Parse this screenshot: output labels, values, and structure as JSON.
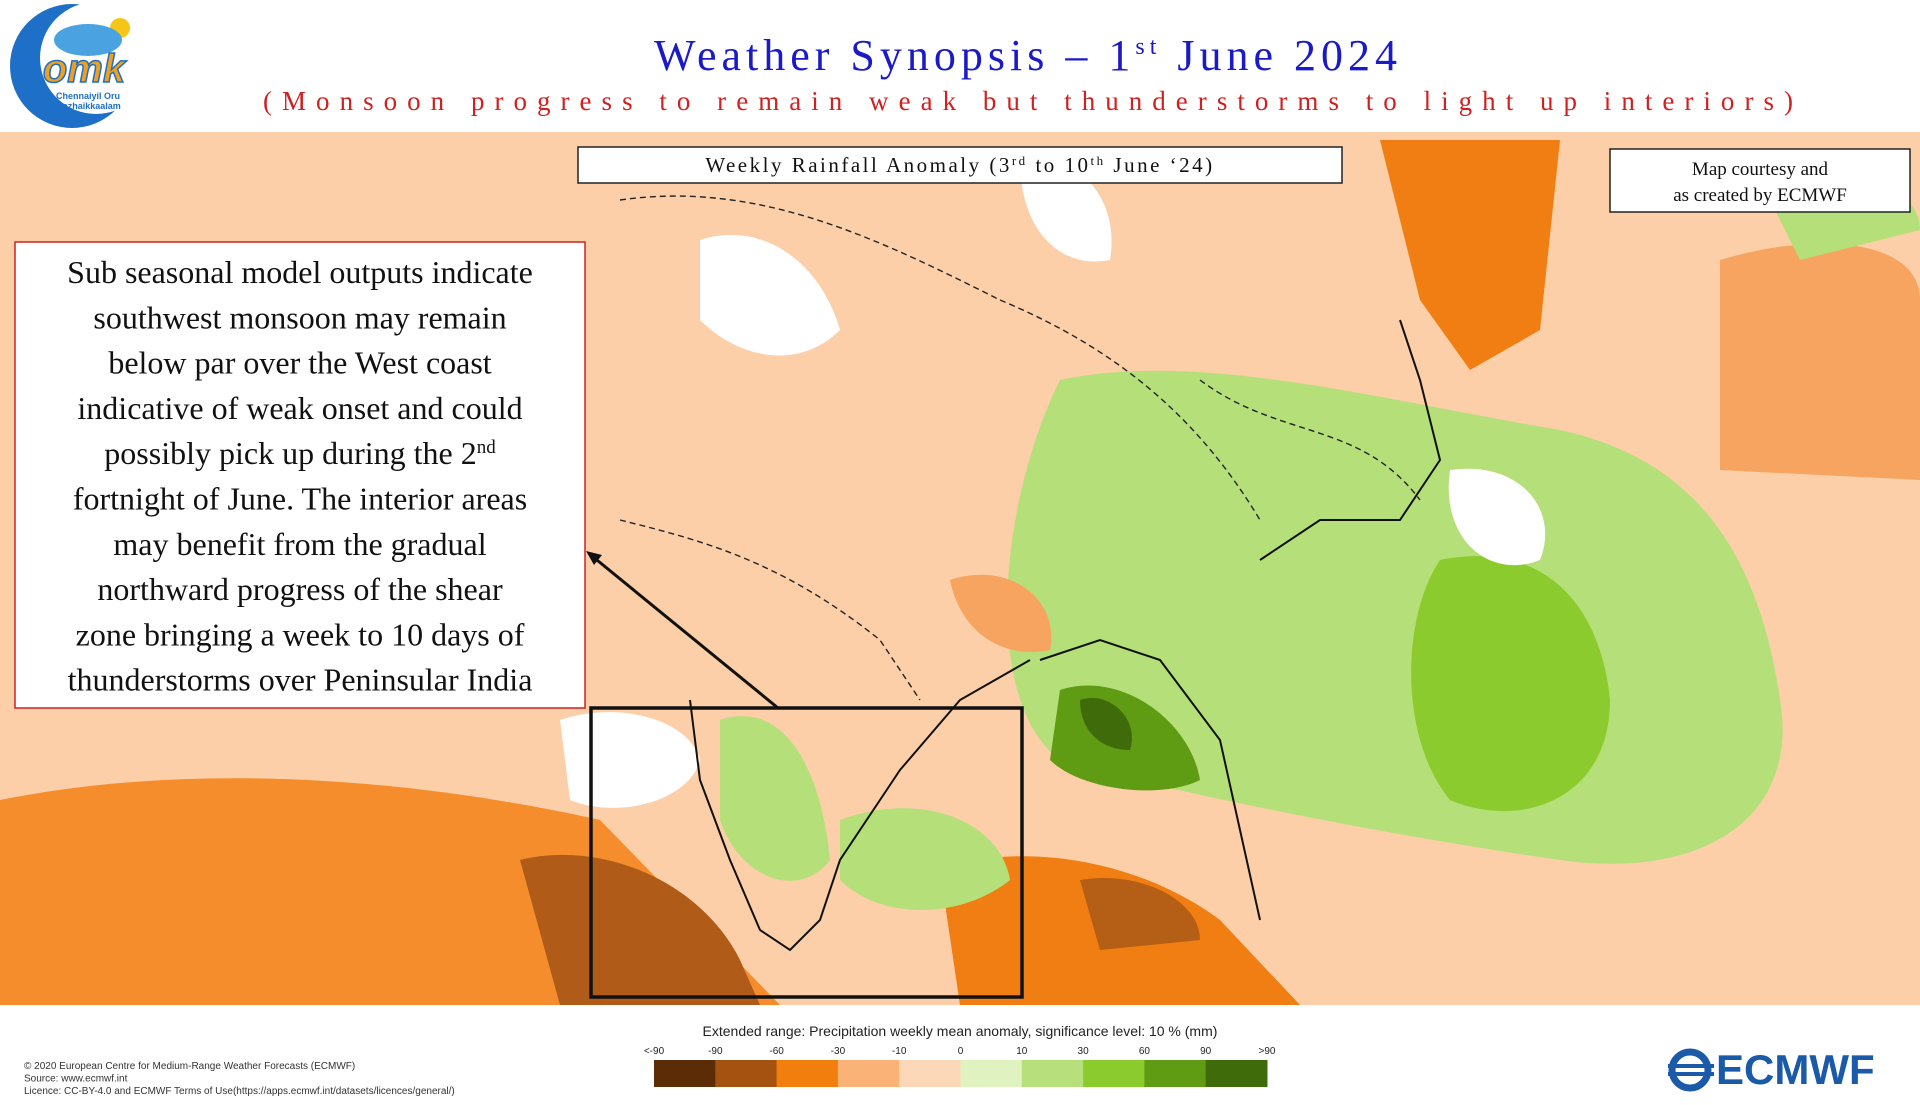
{
  "header": {
    "logo_text": "omk",
    "logo_caption": [
      "Chennaiyil Oru",
      "Mazhaikkaalam"
    ],
    "title": "Weather Synopsis – 1",
    "title_sup": "st",
    "title_end": " June 2024",
    "subtitle": "(Monsoon progress to remain weak but thunderstorms to light up interiors)"
  },
  "map_label": [
    "Weekly Rainfall Anomaly (3",
    "rd",
    " to 10",
    "th",
    " June ‘24)"
  ],
  "courtesy": [
    "Map courtesy and",
    "as created by ECMWF"
  ],
  "callout": {
    "lines": [
      "Sub seasonal model outputs indicate",
      "southwest monsoon may remain",
      "below par over the West coast",
      "indicative of  weak onset and could",
      "possibly pick up during the 2",
      "fortnight of June. The interior areas",
      "may benefit from the gradual",
      "northward progress of  the shear",
      "zone bringing a week to 10 days of",
      "thunderstorms over Peninsular India"
    ],
    "sup": "nd"
  },
  "legend": {
    "title": "Extended range: Precipitation weekly mean anomaly, significance level: 10 % (mm)",
    "labels": [
      "<-90",
      "-90",
      "-60",
      "-30",
      "-10",
      "0",
      "10",
      "30",
      "60",
      "90",
      ">90"
    ],
    "colors": [
      "#5c2c07",
      "#a55210",
      "#f27e0e",
      "#fbb276",
      "#fdd8b8",
      "#dff2bf",
      "#b7e07c",
      "#8ccb2e",
      "#5f9b13",
      "#3f6b0b"
    ]
  },
  "footer": {
    "copyright": [
      "© 2020 European Centre for Medium-Range Weather Forecasts (ECMWF)",
      "Source: www.ecmwf.int",
      "Licence: CC-BY-4.0 and ECMWF Terms of Use(https://apps.ecmwf.int/datasets/licences/general/)"
    ],
    "brand": "ECMWF"
  }
}
